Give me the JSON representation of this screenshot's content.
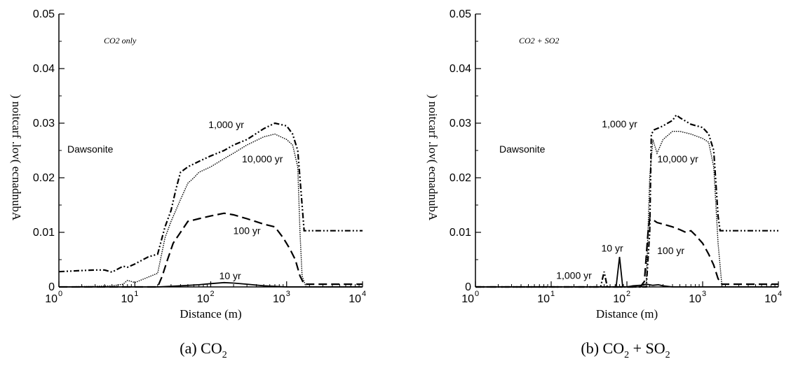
{
  "chart_data": [
    {
      "type": "line",
      "caption": {
        "pre": "(a) CO",
        "sub": "2",
        "post": ""
      },
      "annotation": "CO2 only",
      "mineral_label": "Dawsonite",
      "xlabel": "Distance (m)",
      "ylabel": "A bundance (vol. fraction)",
      "ylabel_rendered": ") noitcarf .lov( ecnadnubA",
      "xscale": "log",
      "xlim": [
        1,
        10000
      ],
      "ylim": [
        0,
        0.05
      ],
      "x_ticks": [
        {
          "base": "10",
          "exp": "0"
        },
        {
          "base": "10",
          "exp": "1"
        },
        {
          "base": "10",
          "exp": "2"
        },
        {
          "base": "10",
          "exp": "3"
        },
        {
          "base": "10",
          "exp": "4"
        }
      ],
      "y_ticks": [
        "0",
        "0.01",
        "0.02",
        "0.03",
        "0.04",
        "0.05"
      ],
      "series": [
        {
          "name": "10 yr",
          "style": "solid",
          "x": [
            1,
            3,
            10,
            20,
            40,
            70,
            100,
            150,
            200,
            300,
            500,
            700,
            1000,
            1300,
            1600,
            1800,
            10000
          ],
          "y": [
            0,
            0,
            0,
            0,
            0.0002,
            0.0004,
            0.0006,
            0.0008,
            0.0007,
            0.0005,
            0.0002,
            0.0001,
            0,
            0,
            0,
            0,
            0
          ]
        },
        {
          "name": "100 yr",
          "style": "dashed",
          "x": [
            1,
            20,
            23,
            27,
            32,
            40,
            50,
            70,
            100,
            150,
            200,
            300,
            500,
            700,
            900,
            1100,
            1300,
            1500,
            1700,
            1800,
            10000
          ],
          "y": [
            0,
            0,
            0.002,
            0.005,
            0.008,
            0.01,
            0.012,
            0.0125,
            0.013,
            0.0135,
            0.0132,
            0.0125,
            0.0115,
            0.011,
            0.009,
            0.007,
            0.005,
            0.002,
            0.0005,
            0.0005,
            0.0005
          ]
        },
        {
          "name": "1,000 yr",
          "style": "dashdot",
          "x": [
            1,
            2,
            3,
            4,
            5,
            7,
            8,
            10,
            15,
            20,
            25,
            30,
            35,
            40,
            50,
            70,
            100,
            150,
            200,
            300,
            500,
            700,
            1000,
            1200,
            1400,
            1600,
            1700,
            10000
          ],
          "y": [
            0.0028,
            0.003,
            0.0031,
            0.0031,
            0.0027,
            0.0038,
            0.0036,
            0.0042,
            0.0055,
            0.006,
            0.011,
            0.014,
            0.018,
            0.021,
            0.022,
            0.023,
            0.024,
            0.025,
            0.026,
            0.027,
            0.029,
            0.03,
            0.0295,
            0.028,
            0.025,
            0.015,
            0.0103,
            0.0103
          ]
        },
        {
          "name": "10,000 yr",
          "style": "dotted",
          "x": [
            1,
            3,
            5,
            7,
            8,
            10,
            15,
            20,
            25,
            30,
            40,
            50,
            60,
            70,
            100,
            150,
            200,
            300,
            500,
            700,
            1000,
            1200,
            1400,
            1500,
            1600,
            1800,
            10000
          ],
          "y": [
            0,
            0.0001,
            0.0002,
            0.0005,
            0.0012,
            0.0008,
            0.0018,
            0.0025,
            0.009,
            0.012,
            0.016,
            0.019,
            0.02,
            0.021,
            0.022,
            0.0235,
            0.0245,
            0.026,
            0.0275,
            0.028,
            0.027,
            0.026,
            0.022,
            0.01,
            0.002,
            0,
            0
          ]
        }
      ],
      "curve_labels": [
        {
          "text": "1,000 yr",
          "x": 160,
          "y": 0.0291
        },
        {
          "text": "10,000 yr",
          "x": 480,
          "y": 0.0228
        },
        {
          "text": "100 yr",
          "x": 300,
          "y": 0.0097
        },
        {
          "text": "10 yr",
          "x": 180,
          "y": 0.0014
        }
      ]
    },
    {
      "type": "line",
      "caption": {
        "pre": "(b) CO",
        "sub": "2",
        "post": " + SO",
        "sub2": "2"
      },
      "annotation": "CO2 + SO2",
      "mineral_label": "Dawsonite",
      "xlabel": "Distance (m)",
      "ylabel": "A bundance (vol. fraction)",
      "ylabel_rendered": ") noitcarf .lov( ecnadnubA",
      "xscale": "log",
      "xlim": [
        1,
        10000
      ],
      "ylim": [
        0,
        0.05
      ],
      "x_ticks": [
        {
          "base": "10",
          "exp": "0"
        },
        {
          "base": "10",
          "exp": "1"
        },
        {
          "base": "10",
          "exp": "2"
        },
        {
          "base": "10",
          "exp": "3"
        },
        {
          "base": "10",
          "exp": "4"
        }
      ],
      "y_ticks": [
        "0",
        "0.01",
        "0.02",
        "0.03",
        "0.04",
        "0.05"
      ],
      "series": [
        {
          "name": "10 yr",
          "style": "solid",
          "x": [
            1,
            60,
            72,
            80,
            88,
            100,
            120,
            150,
            180,
            220,
            260,
            300,
            400,
            10000
          ],
          "y": [
            0,
            0,
            0,
            0.0055,
            0,
            0,
            0.0002,
            0.0003,
            0.0005,
            0.0003,
            0.0004,
            0.0002,
            0,
            0
          ]
        },
        {
          "name": "100 yr",
          "style": "dashed",
          "x": [
            1,
            150,
            170,
            190,
            200,
            210,
            250,
            300,
            400,
            500,
            600,
            700,
            800,
            1000,
            1200,
            1400,
            1600,
            1800,
            10000
          ],
          "y": [
            0,
            0,
            0.001,
            0.01,
            0.0125,
            0.0125,
            0.0118,
            0.0115,
            0.011,
            0.0105,
            0.01,
            0.0103,
            0.0095,
            0.008,
            0.006,
            0.004,
            0.0015,
            0.0005,
            0.0005
          ]
        },
        {
          "name": "1,000 yr",
          "style": "dashdot",
          "x": [
            1,
            45,
            50,
            55,
            60,
            180,
            200,
            210,
            230,
            250,
            300,
            400,
            450,
            500,
            700,
            1000,
            1200,
            1400,
            1600,
            1700,
            10000
          ],
          "y": [
            0,
            0,
            0.0028,
            0,
            0,
            0,
            0.01,
            0.028,
            0.0288,
            0.029,
            0.0295,
            0.0305,
            0.0315,
            0.031,
            0.0298,
            0.0292,
            0.028,
            0.025,
            0.013,
            0.0103,
            0.0103
          ]
        },
        {
          "name": "10,000 yr",
          "style": "dotted",
          "x": [
            1,
            150,
            180,
            200,
            220,
            250,
            300,
            400,
            500,
            700,
            1000,
            1200,
            1400,
            1600,
            1800,
            10000
          ],
          "y": [
            0,
            0,
            0.0005,
            0.02,
            0.027,
            0.0245,
            0.027,
            0.0285,
            0.0285,
            0.028,
            0.0272,
            0.0265,
            0.022,
            0.008,
            0,
            0
          ]
        }
      ],
      "curve_labels": [
        {
          "text": "1,000 yr",
          "x": 80,
          "y": 0.0292
        },
        {
          "text": "10,000 yr",
          "x": 470,
          "y": 0.0228
        },
        {
          "text": "100 yr",
          "x": 380,
          "y": 0.006
        },
        {
          "text": "10 yr",
          "x": 64,
          "y": 0.0065
        },
        {
          "text": "1,000 yr",
          "x": 20,
          "y": 0.0015
        }
      ]
    }
  ]
}
